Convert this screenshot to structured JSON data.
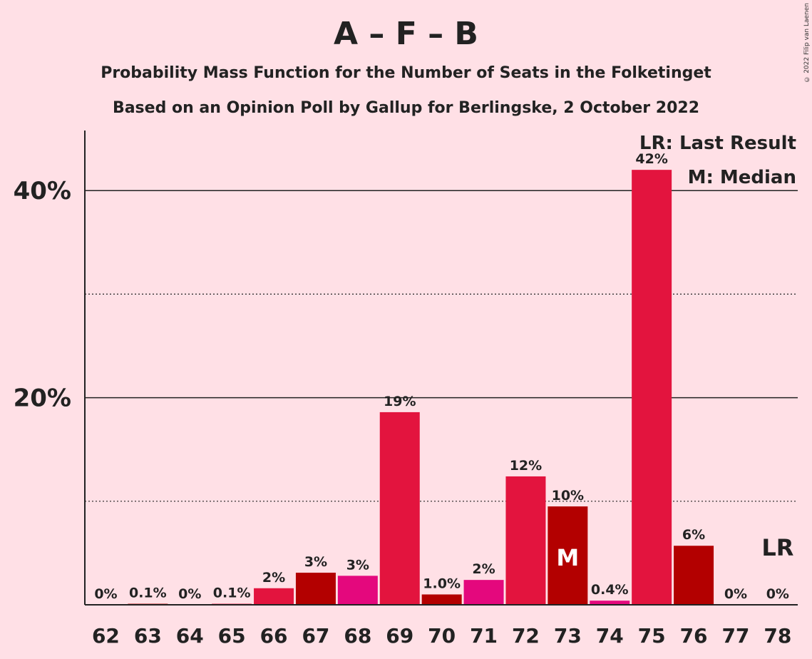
{
  "title": "A – F – B",
  "subtitle_1": "Probability Mass Function for the Number of Seats in the Folketinget",
  "subtitle_2": "Based on an Opinion Poll by Gallup for Berlingske, 2 October 2022",
  "credit": "© 2022 Filip van Laenen",
  "legend": {
    "last_result": "LR: Last Result",
    "median": "M: Median"
  },
  "colors": {
    "background": "#FFE0E6",
    "crimson": "#E3143E",
    "darkred": "#B30000",
    "magenta": "#E4087D"
  },
  "chart_data": {
    "type": "bar",
    "categories": [
      "62",
      "63",
      "64",
      "65",
      "66",
      "67",
      "68",
      "69",
      "70",
      "71",
      "72",
      "73",
      "74",
      "75",
      "76",
      "77",
      "78"
    ],
    "values": [
      0,
      0.1,
      0,
      0.1,
      1.6,
      3.1,
      2.8,
      18.6,
      1.0,
      2.4,
      12.4,
      9.5,
      0.4,
      42.0,
      5.7,
      0,
      0
    ],
    "labels": [
      "0%",
      "0.1%",
      "0%",
      "0.1%",
      "2%",
      "3%",
      "3%",
      "19%",
      "1.0%",
      "2%",
      "12%",
      "10%",
      "0.4%",
      "42%",
      "6%",
      "0%",
      "0%"
    ],
    "bar_colors": [
      "#E3143E",
      "#B30000",
      "#E4087D",
      "#E3143E",
      "#E3143E",
      "#B30000",
      "#E4087D",
      "#E3143E",
      "#B30000",
      "#E4087D",
      "#E3143E",
      "#B30000",
      "#E4087D",
      "#E3143E",
      "#B30000",
      "#E4087D",
      "#E3143E"
    ],
    "y_ticks": [
      {
        "value": 20,
        "label": "20%"
      },
      {
        "value": 40,
        "label": "40%"
      }
    ],
    "minor_gridlines": [
      10,
      30
    ],
    "ylim": [
      0,
      46
    ],
    "median": {
      "category": "73",
      "label": "M"
    },
    "last_result": {
      "category": "78",
      "label": "LR"
    }
  }
}
